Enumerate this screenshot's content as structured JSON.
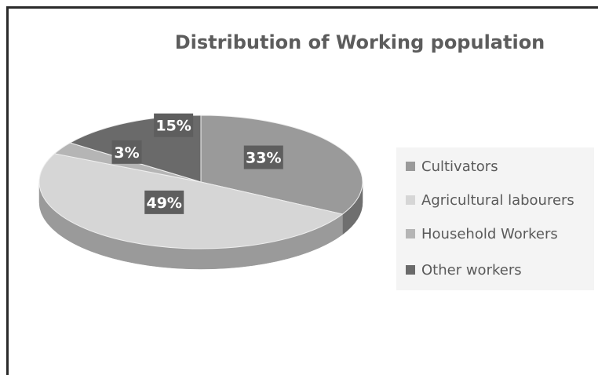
{
  "chart_data": {
    "type": "pie",
    "title": "Distribution of Working population",
    "categories": [
      "Cultivators",
      "Agricultural labourers",
      "Household Workers",
      "Other workers"
    ],
    "values": [
      33,
      49,
      3,
      15
    ],
    "data_labels": [
      "33%",
      "49%",
      "3%",
      "15%"
    ],
    "colors": [
      "#9a9a9a",
      "#d6d6d6",
      "#b5b5b5",
      "#6a6a6a"
    ],
    "label_color": "#ffffff",
    "label_box_color": "#5e5e5e",
    "legend_position": "right",
    "style": "3d"
  }
}
